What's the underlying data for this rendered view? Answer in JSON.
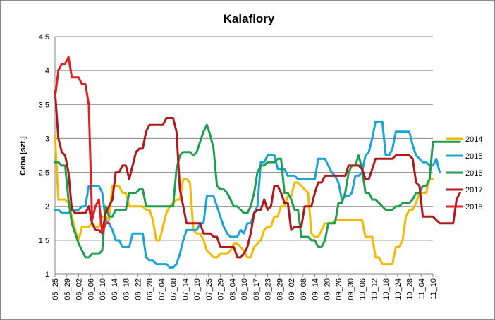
{
  "chart_data": {
    "type": "line",
    "title": "Kalafiory",
    "xlabel": "",
    "ylabel": "Cena [szt.]",
    "ylim": [
      1,
      4.5
    ],
    "yticks": [
      "1",
      "1,5",
      "2",
      "2,5",
      "3",
      "3,5",
      "4",
      "4,5"
    ],
    "x_tick_labels": [
      "05_25",
      "05_29",
      "06_02",
      "06_06",
      "06_10",
      "06_14",
      "06_18",
      "06_22",
      "06_28",
      "07_04",
      "07_08",
      "07_14",
      "07_19",
      "07_25",
      "07_29",
      "08_04",
      "08_10",
      "08_17",
      "08_23",
      "08_29",
      "09_02",
      "09_08",
      "09_14",
      "09_20",
      "09_26",
      "09_30",
      "10_06",
      "10_12",
      "10_18",
      "10_24",
      "10_28",
      "11_04",
      "11_10"
    ],
    "grid": true,
    "legend_position": "right",
    "series": [
      {
        "name": "2014",
        "color": "#f5b900",
        "values": [
          3.05,
          2.1,
          2.1,
          2.1,
          2.05,
          1.85,
          1.65,
          1.5,
          1.7,
          1.7,
          1.7,
          1.75,
          1.7,
          1.7,
          1.85,
          1.85,
          1.8,
          2.3,
          2.3,
          2.3,
          2.2,
          2.2,
          2.0,
          2.0,
          2.0,
          2.0,
          2.0,
          1.95,
          1.95,
          1.8,
          1.5,
          1.5,
          1.7,
          1.9,
          2.0,
          2.05,
          2.1,
          2.1,
          2.4,
          2.4,
          2.35,
          1.65,
          1.6,
          1.6,
          1.5,
          1.35,
          1.3,
          1.25,
          1.25,
          1.3,
          1.3,
          1.3,
          1.35,
          1.45,
          1.45,
          1.4,
          1.35,
          1.25,
          1.25,
          1.4,
          1.45,
          1.5,
          1.65,
          1.7,
          1.7,
          1.85,
          1.85,
          2.0,
          2.0,
          2.15,
          2.15,
          2.35,
          2.35,
          2.3,
          2.25,
          2.2,
          1.6,
          1.55,
          1.55,
          1.65,
          1.75,
          1.75,
          1.75,
          1.8,
          1.8,
          1.8,
          1.8,
          1.8,
          1.8,
          1.8,
          1.8,
          1.8,
          1.55,
          1.55,
          1.55,
          1.25,
          1.25,
          1.15,
          1.15,
          1.15,
          1.15,
          1.4,
          1.4,
          1.5,
          1.85,
          1.95,
          1.95,
          2.05,
          2.2,
          2.2,
          2.2,
          2.4,
          2.4
        ]
      },
      {
        "name": "2015",
        "color": "#1aa3d9",
        "values": [
          1.95,
          1.95,
          1.9,
          1.9,
          1.9,
          1.95,
          1.95,
          1.95,
          2.0,
          2.0,
          2.3,
          2.3,
          2.3,
          2.3,
          2.2,
          1.8,
          1.75,
          1.65,
          1.5,
          1.5,
          1.4,
          1.4,
          1.4,
          1.6,
          1.6,
          1.6,
          1.6,
          1.25,
          1.2,
          1.2,
          1.15,
          1.15,
          1.15,
          1.15,
          1.1,
          1.1,
          1.15,
          1.3,
          1.5,
          1.65,
          1.65,
          1.65,
          1.65,
          1.75,
          1.75,
          2.15,
          2.15,
          2.15,
          2.0,
          1.85,
          1.7,
          1.6,
          1.55,
          1.55,
          1.55,
          1.65,
          1.6,
          1.75,
          1.75,
          1.9,
          2.0,
          2.65,
          2.65,
          2.75,
          2.75,
          2.75,
          2.55,
          2.55,
          2.55,
          2.45,
          2.45,
          2.45,
          2.4,
          2.4,
          2.4,
          2.4,
          2.4,
          2.4,
          2.7,
          2.7,
          2.7,
          2.6,
          2.5,
          2.45,
          2.35,
          2.1,
          2.15,
          2.15,
          2.2,
          2.45,
          2.45,
          2.5,
          2.75,
          2.8,
          3.0,
          3.25,
          3.25,
          3.25,
          2.75,
          2.75,
          2.85,
          3.1,
          3.1,
          3.1,
          3.1,
          3.1,
          2.9,
          2.75,
          2.7,
          2.65,
          2.65,
          2.6,
          2.6,
          2.7,
          2.5
        ]
      },
      {
        "name": "2016",
        "color": "#1e9e4e",
        "values": [
          2.65,
          2.65,
          2.6,
          2.6,
          2.1,
          1.75,
          1.6,
          1.45,
          1.35,
          1.25,
          1.25,
          1.3,
          1.3,
          1.3,
          1.35,
          2.0,
          1.85,
          1.85,
          1.95,
          1.95,
          1.95,
          1.95,
          2.2,
          2.2,
          2.2,
          2.25,
          2.25,
          2.0,
          2.0,
          2.0,
          2.0,
          2.0,
          2.0,
          2.0,
          2.0,
          2.0,
          2.55,
          2.75,
          2.8,
          2.8,
          2.8,
          2.75,
          2.8,
          2.95,
          3.1,
          3.2,
          3.05,
          2.85,
          2.3,
          2.25,
          2.25,
          2.2,
          2.1,
          2.0,
          2.0,
          1.95,
          1.9,
          1.9,
          2.0,
          2.2,
          2.5,
          2.6,
          2.6,
          2.65,
          2.65,
          2.65,
          2.7,
          2.7,
          2.2,
          2.2,
          2.1,
          1.95,
          1.95,
          1.55,
          1.55,
          1.55,
          1.5,
          1.5,
          1.4,
          1.4,
          1.5,
          1.75,
          1.75,
          1.75,
          2.05,
          2.05,
          2.2,
          2.5,
          2.6,
          2.6,
          2.75,
          2.55,
          2.2,
          2.2,
          2.1,
          2.1,
          2.05,
          2.0,
          1.95,
          1.95,
          1.95,
          2.0,
          2.0,
          2.05,
          2.05,
          2.05,
          2.1,
          2.2,
          2.2,
          2.3,
          2.3,
          2.4,
          2.95,
          2.95,
          2.95,
          2.95,
          2.95,
          2.95,
          2.95,
          2.95,
          2.95
        ]
      },
      {
        "name": "2017",
        "color": "#b0181c",
        "values": [
          3.7,
          3.0,
          2.8,
          2.75,
          2.5,
          1.95,
          1.9,
          1.9,
          1.9,
          1.9,
          2.0,
          1.75,
          1.65,
          1.65,
          1.6,
          1.9,
          2.0,
          2.1,
          2.5,
          2.5,
          2.6,
          2.6,
          2.4,
          2.6,
          2.8,
          2.85,
          2.85,
          3.1,
          3.2,
          3.2,
          3.2,
          3.2,
          3.2,
          3.3,
          3.3,
          3.3,
          3.1,
          2.25,
          2.0,
          1.75,
          1.75,
          1.75,
          1.75,
          1.75,
          1.6,
          1.6,
          1.6,
          1.55,
          1.55,
          1.4,
          1.4,
          1.4,
          1.4,
          1.4,
          1.25,
          1.25,
          1.3,
          1.4,
          1.6,
          1.9,
          1.95,
          1.95,
          2.1,
          1.95,
          2.0,
          2.3,
          2.3,
          2.2,
          2.05,
          2.05,
          1.65,
          1.7,
          1.7,
          1.7,
          2.0,
          2.0,
          2.0,
          2.2,
          2.35,
          2.35,
          2.45,
          2.45,
          2.45,
          2.45,
          2.45,
          2.45,
          2.45,
          2.6,
          2.6,
          2.6,
          2.6,
          2.55,
          2.4,
          2.4,
          2.55,
          2.7,
          2.7,
          2.7,
          2.7,
          2.7,
          2.7,
          2.75,
          2.75,
          2.75,
          2.75,
          2.75,
          2.7,
          2.35,
          2.3,
          1.85,
          1.85,
          1.85,
          1.85,
          1.8,
          1.75,
          1.75,
          1.75,
          1.75,
          1.75,
          2.1,
          2.2
        ]
      },
      {
        "name": "2018",
        "color": "#e31f26",
        "values": [
          3.6,
          4.0,
          4.1,
          4.1,
          4.2,
          3.9,
          3.9,
          3.9,
          3.8,
          3.8,
          3.5,
          1.8,
          2.0,
          2.1,
          1.6,
          1.75,
          1.75
        ]
      }
    ]
  }
}
